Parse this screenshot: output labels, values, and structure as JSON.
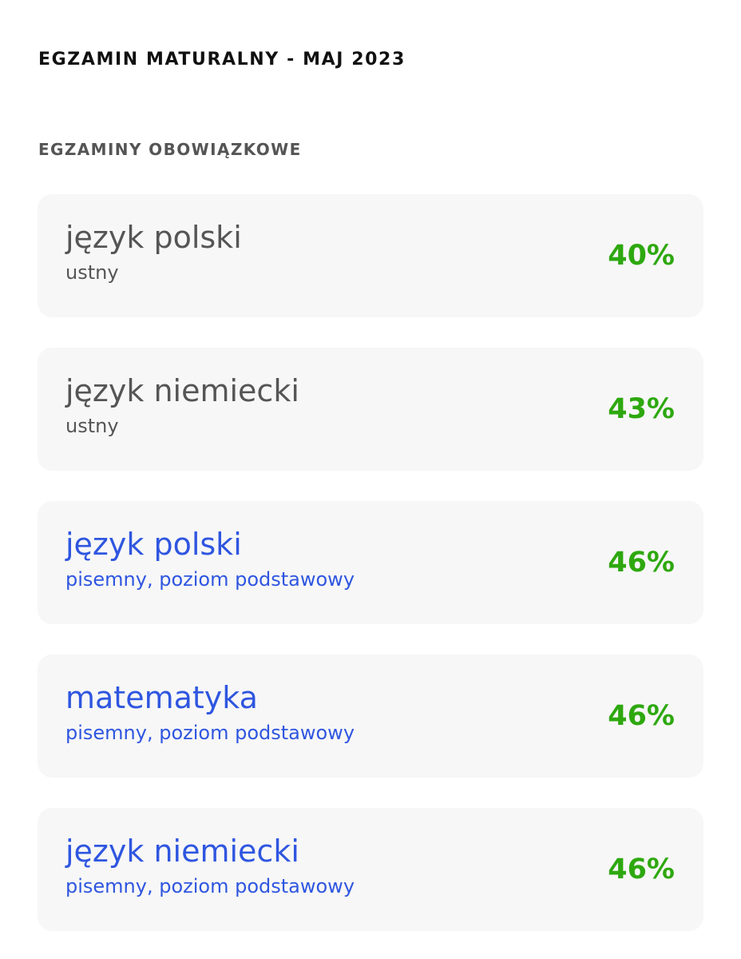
{
  "header": {
    "title": "EGZAMIN MATURALNY - MAJ 2023"
  },
  "section": {
    "title": "EGZAMINY OBOWIĄZKOWE"
  },
  "colors": {
    "link_blue": "#2f56e0",
    "score_green": "#2ea80f",
    "muted_gray": "#555555",
    "card_bg": "#f7f7f7"
  },
  "exams": [
    {
      "name": "język polski",
      "detail": "ustny",
      "score": "40%"
    },
    {
      "name": "język niemiecki",
      "detail": "ustny",
      "score": "43%"
    },
    {
      "name": "język polski",
      "detail": "pisemny, poziom podstawowy",
      "score": "46%"
    },
    {
      "name": "matematyka",
      "detail": "pisemny, poziom podstawowy",
      "score": "46%"
    },
    {
      "name": "język niemiecki",
      "detail": "pisemny, poziom podstawowy",
      "score": "46%"
    }
  ]
}
